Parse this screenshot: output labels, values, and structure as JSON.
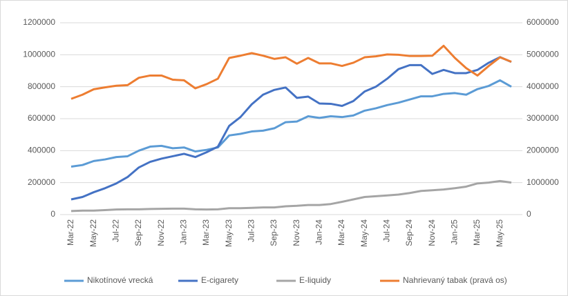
{
  "chart_data": {
    "type": "line",
    "categories": [
      "Mar-22",
      null,
      "May-22",
      null,
      "Jul-22",
      null,
      "Sep-22",
      null,
      "Nov-22",
      null,
      "Jan-23",
      null,
      "Mar-23",
      null,
      "May-23",
      null,
      "Jul-23",
      null,
      "Sep-23",
      null,
      "Nov-23",
      null,
      "Jan-24",
      null,
      "Mar-24",
      null,
      "May-24",
      null,
      "Jul-24",
      null,
      "Sep-24",
      null,
      "Nov-24",
      null,
      "Jan-25",
      null,
      "Mar-25",
      null,
      "May-25",
      null
    ],
    "series": [
      {
        "name": "Nikotínové vrecká",
        "color": "#5b9bd5",
        "values": [
          300000,
          310000,
          335000,
          345000,
          360000,
          365000,
          400000,
          425000,
          430000,
          415000,
          420000,
          395000,
          405000,
          420000,
          495000,
          505000,
          520000,
          525000,
          540000,
          578000,
          582000,
          615000,
          605000,
          615000,
          610000,
          620000,
          650000,
          665000,
          685000,
          700000,
          720000,
          740000,
          740000,
          755000,
          760000,
          750000,
          785000,
          805000,
          840000,
          800000
        ]
      },
      {
        "name": "E-cigarety",
        "color": "#4472c4",
        "values": [
          95000,
          110000,
          140000,
          165000,
          195000,
          235000,
          295000,
          330000,
          350000,
          365000,
          380000,
          360000,
          390000,
          425000,
          555000,
          610000,
          690000,
          750000,
          780000,
          795000,
          730000,
          738000,
          695000,
          693000,
          680000,
          710000,
          770000,
          800000,
          850000,
          910000,
          935000,
          935000,
          880000,
          905000,
          885000,
          885000,
          905000,
          950000,
          985000,
          955000
        ]
      },
      {
        "name": "E-liquidy",
        "color": "#a5a5a5",
        "values": [
          22000,
          25000,
          25000,
          28000,
          32000,
          33000,
          33000,
          35000,
          36000,
          37000,
          37000,
          33000,
          32000,
          33000,
          40000,
          40000,
          42000,
          45000,
          45000,
          52000,
          55000,
          60000,
          60000,
          66000,
          80000,
          95000,
          110000,
          115000,
          120000,
          125000,
          135000,
          148000,
          152000,
          157000,
          165000,
          175000,
          195000,
          200000,
          210000,
          200000
        ]
      },
      {
        "name": "Nahrievaný tabak (pravá os)",
        "color": "#ed7d31",
        "axis": "y2",
        "values": [
          3620000,
          3750000,
          3920000,
          3980000,
          4030000,
          4050000,
          4280000,
          4350000,
          4350000,
          4220000,
          4200000,
          3950000,
          4080000,
          4250000,
          4900000,
          4970000,
          5050000,
          4970000,
          4870000,
          4920000,
          4720000,
          4900000,
          4730000,
          4730000,
          4650000,
          4750000,
          4920000,
          4950000,
          5010000,
          5000000,
          4960000,
          4960000,
          4970000,
          5280000,
          4900000,
          4580000,
          4350000,
          4650000,
          4920000,
          4780000
        ]
      }
    ],
    "ylim": [
      0,
      1200000
    ],
    "yticks": [
      0,
      200000,
      400000,
      600000,
      800000,
      1000000,
      1200000
    ],
    "y2lim": [
      0,
      6000000
    ],
    "y2ticks": [
      0,
      1000000,
      2000000,
      3000000,
      4000000,
      5000000,
      6000000
    ],
    "grid": true,
    "legend": "bottom"
  }
}
